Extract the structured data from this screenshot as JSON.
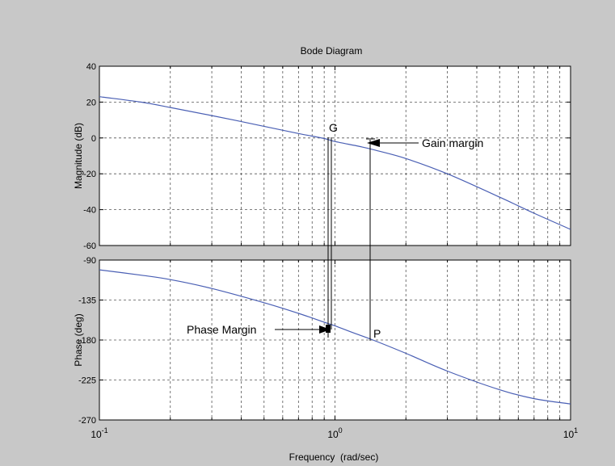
{
  "chart_data": [
    {
      "type": "line",
      "title": "Bode Diagram",
      "ylabel": "Magnitude (dB)",
      "xlabel": "",
      "x_scale": "log",
      "xlim": [
        0.1,
        10
      ],
      "ylim": [
        -60,
        40
      ],
      "yticks": [
        40,
        20,
        0,
        -20,
        -40,
        -60
      ],
      "grid": true,
      "series": [
        {
          "color": "#4a5fb4",
          "x": [
            0.1,
            0.15,
            0.2,
            0.3,
            0.5,
            0.7,
            0.9,
            1,
            1.3,
            1.5,
            2,
            3,
            5,
            7,
            10
          ],
          "y": [
            23,
            20,
            17,
            12.5,
            6.5,
            2.5,
            -0.3,
            -2,
            -5,
            -7,
            -11.5,
            -20,
            -33,
            -42,
            -51
          ]
        }
      ],
      "annotations": [
        {
          "text": "G",
          "x": 0.95,
          "y": 0
        },
        {
          "text": "Gain margin",
          "x": 1.45,
          "y": -3
        }
      ]
    },
    {
      "type": "line",
      "title": "",
      "ylabel": "Phase (deg)",
      "xlabel": "Frequency  (rad/sec)",
      "x_scale": "log",
      "xlim": [
        0.1,
        10
      ],
      "ylim": [
        -270,
        -90
      ],
      "yticks": [
        -90,
        -135,
        -180,
        -225,
        -270
      ],
      "xticks": [
        {
          "base": "10",
          "exp": "-1"
        },
        {
          "base": "10",
          "exp": "0"
        },
        {
          "base": "10",
          "exp": "1"
        }
      ],
      "grid": true,
      "series": [
        {
          "color": "#4a5fb4",
          "x": [
            0.1,
            0.15,
            0.2,
            0.3,
            0.5,
            0.7,
            0.9,
            1,
            1.2,
            1.45,
            2,
            3,
            5,
            7,
            10
          ],
          "y": [
            -101,
            -107,
            -112,
            -122,
            -138,
            -150,
            -160,
            -164,
            -172,
            -180,
            -195,
            -215,
            -236,
            -246,
            -252
          ]
        }
      ],
      "annotations": [
        {
          "text": "Phase Margin",
          "x": 0.92,
          "y": -172
        },
        {
          "text": "P",
          "x": 1.45,
          "y": -180
        }
      ]
    }
  ]
}
